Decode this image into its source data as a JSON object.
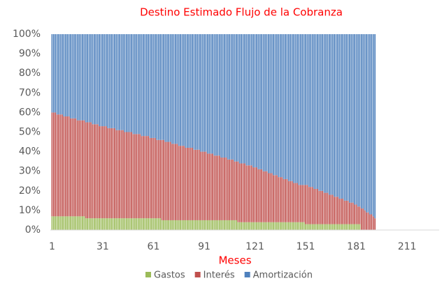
{
  "chart_data": {
    "type": "bar",
    "stacked": true,
    "title": "Destino Estimado Flujo de la Cobranza",
    "x_label": "Meses",
    "x": [
      1,
      2,
      3,
      4,
      5,
      6,
      7,
      8,
      9,
      10,
      11,
      12,
      13,
      14,
      15,
      16,
      17,
      18,
      19,
      20,
      21,
      22,
      23,
      24,
      25,
      26,
      27,
      28,
      29,
      30,
      31,
      32,
      33,
      34,
      35,
      36,
      37,
      38,
      39,
      40,
      41,
      42,
      43,
      44,
      45,
      46,
      47,
      48,
      49,
      50,
      51,
      52,
      53,
      54,
      55,
      56,
      57,
      58,
      59,
      60,
      61,
      62,
      63,
      64,
      65,
      66,
      67,
      68,
      69,
      70,
      71,
      72,
      73,
      74,
      75,
      76,
      77,
      78,
      79,
      80,
      81,
      82,
      83,
      84,
      85,
      86,
      87,
      88,
      89,
      90,
      91,
      92,
      93,
      94,
      95,
      96,
      97,
      98,
      99,
      100,
      101,
      102,
      103,
      104,
      105,
      106,
      107,
      108,
      109,
      110,
      111,
      112,
      113,
      114,
      115,
      116,
      117,
      118,
      119,
      120,
      121,
      122,
      123,
      124,
      125,
      126,
      127,
      128,
      129,
      130,
      131,
      132,
      133,
      134,
      135,
      136,
      137,
      138,
      139,
      140,
      141,
      142,
      143,
      144,
      145,
      146,
      147,
      148,
      149,
      150,
      151,
      152,
      153,
      154,
      155,
      156,
      157,
      158,
      159,
      160,
      161,
      162,
      163,
      164,
      165,
      166,
      167,
      168,
      169,
      170,
      171,
      172,
      173,
      174,
      175,
      176,
      177,
      178,
      179,
      180,
      181,
      182,
      183,
      184,
      185,
      186,
      187,
      188,
      189,
      190,
      191,
      192
    ],
    "series": [
      {
        "name": "Gastos",
        "color": "#9bbb59",
        "values": [
          7,
          7,
          7,
          7,
          7,
          7,
          7,
          7,
          7,
          7,
          7,
          7,
          7,
          7,
          7,
          7,
          7,
          7,
          7,
          7,
          6,
          6,
          6,
          6,
          6,
          6,
          6,
          6,
          6,
          6,
          6,
          6,
          6,
          6,
          6,
          6,
          6,
          6,
          6,
          6,
          6,
          6,
          6,
          6,
          6,
          6,
          6,
          6,
          6,
          6,
          6,
          6,
          6,
          6,
          6,
          6,
          6,
          6,
          6,
          6,
          6,
          6,
          6,
          6,
          6,
          5,
          5,
          5,
          5,
          5,
          5,
          5,
          5,
          5,
          5,
          5,
          5,
          5,
          5,
          5,
          5,
          5,
          5,
          5,
          5,
          5,
          5,
          5,
          5,
          5,
          5,
          5,
          5,
          5,
          5,
          5,
          5,
          5,
          5,
          5,
          5,
          5,
          5,
          5,
          5,
          5,
          5,
          5,
          5,
          5,
          4,
          4,
          4,
          4,
          4,
          4,
          4,
          4,
          4,
          4,
          4,
          4,
          4,
          4,
          4,
          4,
          4,
          4,
          4,
          4,
          4,
          4,
          4,
          4,
          4,
          4,
          4,
          4,
          4,
          4,
          4,
          4,
          4,
          4,
          4,
          4,
          4,
          4,
          4,
          4,
          3,
          3,
          3,
          3,
          3,
          3,
          3,
          3,
          3,
          3,
          3,
          3,
          3,
          3,
          3,
          3,
          3,
          3,
          3,
          3,
          3,
          3,
          3,
          3,
          3,
          3,
          3,
          3,
          3,
          3,
          3,
          3,
          3,
          0,
          0,
          0,
          0,
          0,
          0,
          0,
          0,
          0
        ]
      },
      {
        "name": "Interés",
        "color": "#c0504d",
        "values": [
          53,
          53,
          53,
          52,
          52,
          52,
          52,
          51,
          51,
          51,
          51,
          50,
          50,
          50,
          50,
          49,
          49,
          49,
          49,
          49,
          49,
          49,
          49,
          49,
          48,
          48,
          48,
          48,
          47,
          47,
          47,
          47,
          47,
          46,
          46,
          46,
          46,
          46,
          45,
          45,
          45,
          45,
          45,
          44,
          44,
          44,
          44,
          44,
          43,
          43,
          43,
          43,
          43,
          42,
          42,
          42,
          42,
          42,
          41,
          41,
          41,
          41,
          40,
          40,
          40,
          41,
          41,
          40,
          40,
          40,
          40,
          39,
          39,
          39,
          39,
          38,
          38,
          38,
          38,
          37,
          37,
          37,
          37,
          37,
          36,
          36,
          36,
          36,
          35,
          35,
          35,
          35,
          34,
          34,
          34,
          34,
          33,
          33,
          33,
          33,
          32,
          32,
          32,
          32,
          31,
          31,
          31,
          31,
          30,
          30,
          31,
          30,
          30,
          30,
          30,
          29,
          29,
          29,
          29,
          28,
          28,
          28,
          27,
          27,
          27,
          26,
          26,
          26,
          25,
          25,
          25,
          24,
          24,
          24,
          23,
          23,
          23,
          22,
          22,
          22,
          21,
          21,
          21,
          20,
          20,
          20,
          19,
          19,
          19,
          19,
          20,
          20,
          19,
          19,
          19,
          18,
          18,
          18,
          17,
          17,
          17,
          16,
          16,
          16,
          15,
          15,
          15,
          14,
          14,
          14,
          13,
          13,
          13,
          12,
          12,
          12,
          11,
          11,
          11,
          10,
          10,
          9,
          9,
          11,
          11,
          10,
          9,
          9,
          8,
          8,
          7,
          6
        ]
      },
      {
        "name": "Amortización",
        "color": "#4f81bd",
        "values": [
          40,
          40,
          40,
          41,
          41,
          41,
          41,
          42,
          42,
          42,
          42,
          43,
          43,
          43,
          43,
          44,
          44,
          44,
          44,
          44,
          45,
          45,
          45,
          45,
          46,
          46,
          46,
          46,
          47,
          47,
          47,
          47,
          47,
          48,
          48,
          48,
          48,
          48,
          49,
          49,
          49,
          49,
          49,
          50,
          50,
          50,
          50,
          50,
          51,
          51,
          51,
          51,
          51,
          52,
          52,
          52,
          52,
          52,
          53,
          53,
          53,
          53,
          54,
          54,
          54,
          54,
          54,
          55,
          55,
          55,
          55,
          56,
          56,
          56,
          56,
          57,
          57,
          57,
          57,
          58,
          58,
          58,
          58,
          58,
          59,
          59,
          59,
          59,
          60,
          60,
          60,
          60,
          61,
          61,
          61,
          61,
          62,
          62,
          62,
          62,
          63,
          63,
          63,
          63,
          64,
          64,
          64,
          64,
          65,
          65,
          65,
          66,
          66,
          66,
          66,
          67,
          67,
          67,
          67,
          68,
          68,
          68,
          69,
          69,
          69,
          70,
          70,
          70,
          71,
          71,
          71,
          72,
          72,
          72,
          73,
          73,
          73,
          74,
          74,
          74,
          75,
          75,
          75,
          76,
          76,
          76,
          77,
          77,
          77,
          77,
          77,
          77,
          78,
          78,
          78,
          79,
          79,
          79,
          80,
          80,
          80,
          81,
          81,
          81,
          82,
          82,
          82,
          83,
          83,
          83,
          84,
          84,
          84,
          85,
          85,
          85,
          86,
          86,
          86,
          87,
          87,
          88,
          88,
          89,
          89,
          90,
          91,
          91,
          92,
          92,
          93,
          94
        ]
      }
    ],
    "xlim": [
      0,
      230
    ],
    "xticks": [
      1,
      31,
      61,
      91,
      121,
      151,
      181,
      211
    ],
    "ylim": [
      0,
      100
    ],
    "yticks": [
      {
        "value": 0,
        "label": "0%"
      },
      {
        "value": 10,
        "label": "10%"
      },
      {
        "value": 20,
        "label": "20%"
      },
      {
        "value": 30,
        "label": "30%"
      },
      {
        "value": 40,
        "label": "40%"
      },
      {
        "value": 50,
        "label": "50%"
      },
      {
        "value": 60,
        "label": "60%"
      },
      {
        "value": 70,
        "label": "70%"
      },
      {
        "value": 80,
        "label": "80%"
      },
      {
        "value": 90,
        "label": "90%"
      },
      {
        "value": 100,
        "label": "100%"
      }
    ],
    "grid": false,
    "legend": "bottom"
  }
}
